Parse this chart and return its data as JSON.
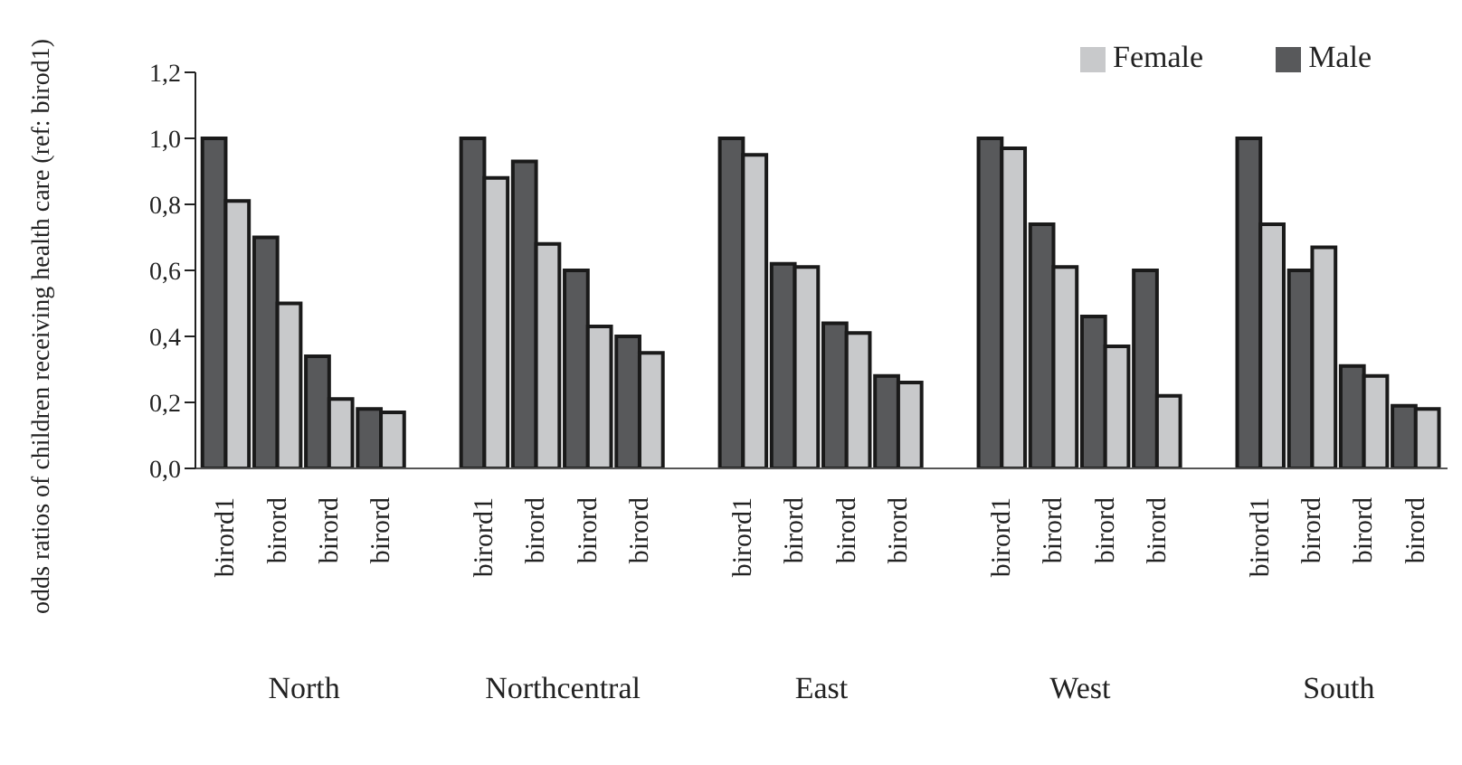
{
  "chart_data": {
    "type": "bar",
    "ylabel": "odds ratios of children receiving health care (ref: birod1)",
    "categories": [
      "birord1",
      "birord",
      "birord",
      "birord",
      "birord1",
      "birord",
      "birord",
      "birord",
      "birord1",
      "birord",
      "birord",
      "birord",
      "birord1",
      "birord",
      "birord",
      "birord",
      "birord1",
      "birord",
      "birord",
      "birord"
    ],
    "series": [
      {
        "name": "Male",
        "color": "#58595b",
        "values": [
          1.0,
          0.7,
          0.34,
          0.18,
          1.0,
          0.93,
          0.6,
          0.4,
          1.0,
          0.62,
          0.44,
          0.28,
          1.0,
          0.74,
          0.46,
          0.6,
          1.0,
          0.6,
          0.31,
          0.19
        ]
      },
      {
        "name": "Female",
        "color": "#c8c9cb",
        "values": [
          0.81,
          0.5,
          0.21,
          0.17,
          0.88,
          0.68,
          0.43,
          0.35,
          0.95,
          0.61,
          0.41,
          0.26,
          0.97,
          0.61,
          0.37,
          0.22,
          0.74,
          0.67,
          0.28,
          0.18
        ]
      }
    ],
    "annotations": [
      "North",
      "Northcentral",
      "East",
      "West",
      "South"
    ],
    "ylim": [
      0,
      1.2
    ],
    "yticks": [
      {
        "value": 0,
        "label": "0,0"
      },
      {
        "value": 0.2,
        "label": "0,2"
      },
      {
        "value": 0.4,
        "label": "0,4"
      },
      {
        "value": 0.6,
        "label": "0,6"
      },
      {
        "value": 0.8,
        "label": "0,8"
      },
      {
        "value": 1.0,
        "label": "1,0"
      },
      {
        "value": 1.2,
        "label": "1,2"
      }
    ],
    "grid": false,
    "legend": "top right"
  }
}
